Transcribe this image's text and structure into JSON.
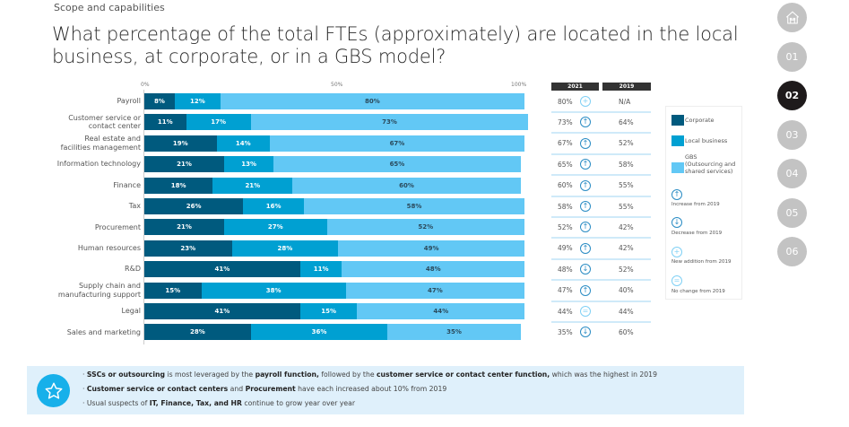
{
  "header": {
    "section": "Scope and capabilities",
    "title": "What percentage of the total FTEs (approximately) are located in the local business, at corporate, or in a GBS model?"
  },
  "chart_data": {
    "type": "bar",
    "orientation": "horizontal",
    "stacked": true,
    "axis_ticks": [
      "0%",
      "50%",
      "100%"
    ],
    "xlim": [
      0,
      100
    ],
    "categories": [
      "Payroll",
      "Customer service or contact center",
      "Real estate and facilities management",
      "Information technology",
      "Finance",
      "Tax",
      "Procurement",
      "Human resources",
      "R&D",
      "Supply chain and manufacturing support",
      "Legal",
      "Sales and marketing"
    ],
    "category_labels": [
      [
        "Payroll"
      ],
      [
        "Customer service or",
        "contact center"
      ],
      [
        "Real estate and",
        "facilities management"
      ],
      [
        "Information technology"
      ],
      [
        "Finance"
      ],
      [
        "Tax"
      ],
      [
        "Procurement"
      ],
      [
        "Human resources"
      ],
      [
        "R&D"
      ],
      [
        "Supply chain and",
        "manufacturing support"
      ],
      [
        "Legal"
      ],
      [
        "Sales and marketing"
      ]
    ],
    "series": [
      {
        "name": "Corporate",
        "color": "#005a7e",
        "values": [
          8,
          11,
          19,
          21,
          18,
          26,
          21,
          23,
          41,
          15,
          41,
          28
        ]
      },
      {
        "name": "Local business",
        "color": "#00a0d2",
        "values": [
          12,
          17,
          14,
          13,
          21,
          16,
          27,
          28,
          11,
          38,
          15,
          36
        ]
      },
      {
        "name": "GBS (Outsourcing and shared services)",
        "color": "#62c8f5",
        "values": [
          80,
          73,
          67,
          65,
          60,
          58,
          52,
          49,
          48,
          47,
          44,
          35
        ]
      }
    ],
    "comparison_table": {
      "headers": [
        "2021",
        "2019"
      ],
      "gbs_2021": [
        "80%",
        "73%",
        "67%",
        "65%",
        "60%",
        "58%",
        "52%",
        "49%",
        "48%",
        "47%",
        "44%",
        "35%"
      ],
      "gbs_2019": [
        "N/A",
        "64%",
        "52%",
        "58%",
        "55%",
        "55%",
        "42%",
        "42%",
        "52%",
        "40%",
        "44%",
        "60%"
      ],
      "trend": [
        "new",
        "increase",
        "increase",
        "increase",
        "increase",
        "increase",
        "increase",
        "increase",
        "decrease",
        "increase",
        "no-change",
        "decrease"
      ]
    },
    "legend": {
      "series": [
        "Corporate",
        "Local business",
        "GBS (Outsourcing and shared services)"
      ],
      "gbs_lines": [
        "GBS",
        "(Outsourcing and",
        "shared services)"
      ],
      "trend": [
        {
          "key": "increase",
          "label": "Increase from 2019"
        },
        {
          "key": "decrease",
          "label": "Decrease from 2019"
        },
        {
          "key": "new",
          "label": "New addition from 2019"
        },
        {
          "key": "no-change",
          "label": "No change from 2019"
        }
      ],
      "placement": "right"
    }
  },
  "nav": {
    "items": [
      {
        "label": "home",
        "icon": "home-icon"
      },
      {
        "label": "01"
      },
      {
        "label": "02",
        "active": true
      },
      {
        "label": "03"
      },
      {
        "label": "04"
      },
      {
        "label": "05"
      },
      {
        "label": "06"
      }
    ]
  },
  "callout": {
    "icon": "star-icon",
    "bullets": [
      [
        {
          "t": "SSCs or outsourcing",
          "b": true
        },
        {
          "t": " is most leveraged by the "
        },
        {
          "t": "payroll function,",
          "b": true
        },
        {
          "t": " followed by the "
        },
        {
          "t": "customer service or contact center function,",
          "b": true
        },
        {
          "t": " which was the highest in 2019"
        }
      ],
      [
        {
          "t": "Customer service or contact centers",
          "b": true
        },
        {
          "t": " and "
        },
        {
          "t": "Procurement",
          "b": true
        },
        {
          "t": " have each increased about 10% from 2019"
        }
      ],
      [
        {
          "t": "Usual suspects of "
        },
        {
          "t": "IT, Finance, Tax, and HR",
          "b": true
        },
        {
          "t": " continue to grow year over year"
        }
      ]
    ]
  },
  "colors": {
    "corporate": "#005a7e",
    "local": "#00a0d2",
    "gbs": "#62c8f5",
    "trend": "#2a8cc4",
    "trend_light": "#7fd0f5",
    "callout_bg": "#dff0fb",
    "star_badge": "#17b0ea"
  }
}
